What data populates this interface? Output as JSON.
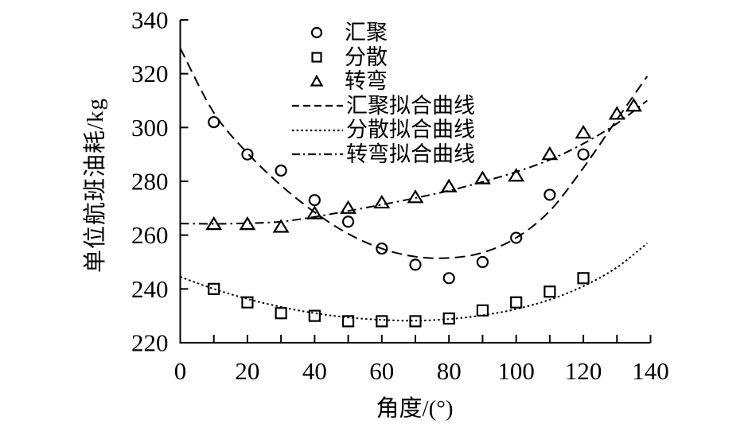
{
  "chart_data": {
    "type": "scatter",
    "title": "",
    "xlabel": "角度/(°)",
    "ylabel": "单位航班油耗/kg",
    "xlim": [
      0,
      140
    ],
    "ylim": [
      220,
      340
    ],
    "xticks": [
      0,
      20,
      40,
      60,
      80,
      100,
      120,
      140
    ],
    "xtick_minor_step": 10,
    "yticks": [
      220,
      240,
      260,
      280,
      300,
      320,
      340
    ],
    "grid": false,
    "legend_position": "inside-top-center",
    "axis_color": "#000000",
    "background_color": "#ffffff",
    "series": [
      {
        "name": "汇聚",
        "marker": "circle",
        "x": [
          10,
          20,
          30,
          40,
          50,
          60,
          70,
          80,
          90,
          100,
          110,
          120
        ],
        "y": [
          302,
          290,
          284,
          273,
          265,
          255,
          249,
          244,
          250,
          259,
          275,
          290
        ]
      },
      {
        "name": "分散",
        "marker": "square",
        "x": [
          10,
          20,
          30,
          40,
          50,
          60,
          70,
          80,
          90,
          100,
          110,
          120
        ],
        "y": [
          240,
          235,
          231,
          230,
          228,
          228,
          228,
          229,
          232,
          235,
          239,
          244
        ]
      },
      {
        "name": "转弯",
        "marker": "triangle",
        "x": [
          10,
          20,
          30,
          40,
          50,
          60,
          70,
          80,
          90,
          100,
          110,
          120,
          130,
          135
        ],
        "y": [
          264,
          264,
          263,
          268,
          270,
          272,
          274,
          278,
          281,
          282,
          290,
          298,
          305,
          308
        ]
      }
    ],
    "fit_curves": [
      {
        "name": "汇聚拟合曲线",
        "style": "dashed",
        "x": [
          0,
          10,
          20,
          30,
          40,
          50,
          60,
          70,
          80,
          90,
          100,
          110,
          120,
          130,
          139
        ],
        "y": [
          329.5,
          305.5,
          290.5,
          278.5,
          268.5,
          260.5,
          255,
          252,
          251.5,
          253.5,
          259,
          269,
          285,
          303,
          319
        ]
      },
      {
        "name": "分散拟合曲线",
        "style": "dotted",
        "x": [
          0,
          10,
          20,
          30,
          40,
          50,
          60,
          70,
          80,
          90,
          100,
          110,
          120,
          130,
          139
        ],
        "y": [
          244.5,
          240,
          236.3,
          233.3,
          231,
          229.4,
          228.5,
          228.2,
          228.8,
          230.2,
          232.5,
          236,
          241,
          248,
          257
        ]
      },
      {
        "name": "转弯拟合曲线",
        "style": "dashdot",
        "x": [
          0,
          10,
          20,
          30,
          40,
          50,
          60,
          70,
          80,
          90,
          100,
          110,
          120,
          130,
          139
        ],
        "y": [
          264.3,
          264.2,
          264.4,
          265,
          266.8,
          269,
          271.3,
          273.8,
          276.5,
          279.8,
          283.5,
          288,
          294,
          301.5,
          310
        ]
      }
    ]
  },
  "legend": {
    "entries": [
      {
        "label": "汇聚",
        "symbol": "circle-marker"
      },
      {
        "label": "分散",
        "symbol": "square-marker"
      },
      {
        "label": "转弯",
        "symbol": "triangle-marker"
      },
      {
        "label": "汇聚拟合曲线",
        "symbol": "dashed-line"
      },
      {
        "label": "分散拟合曲线",
        "symbol": "dotted-line"
      },
      {
        "label": "转弯拟合曲线",
        "symbol": "dashdot-line"
      }
    ]
  }
}
